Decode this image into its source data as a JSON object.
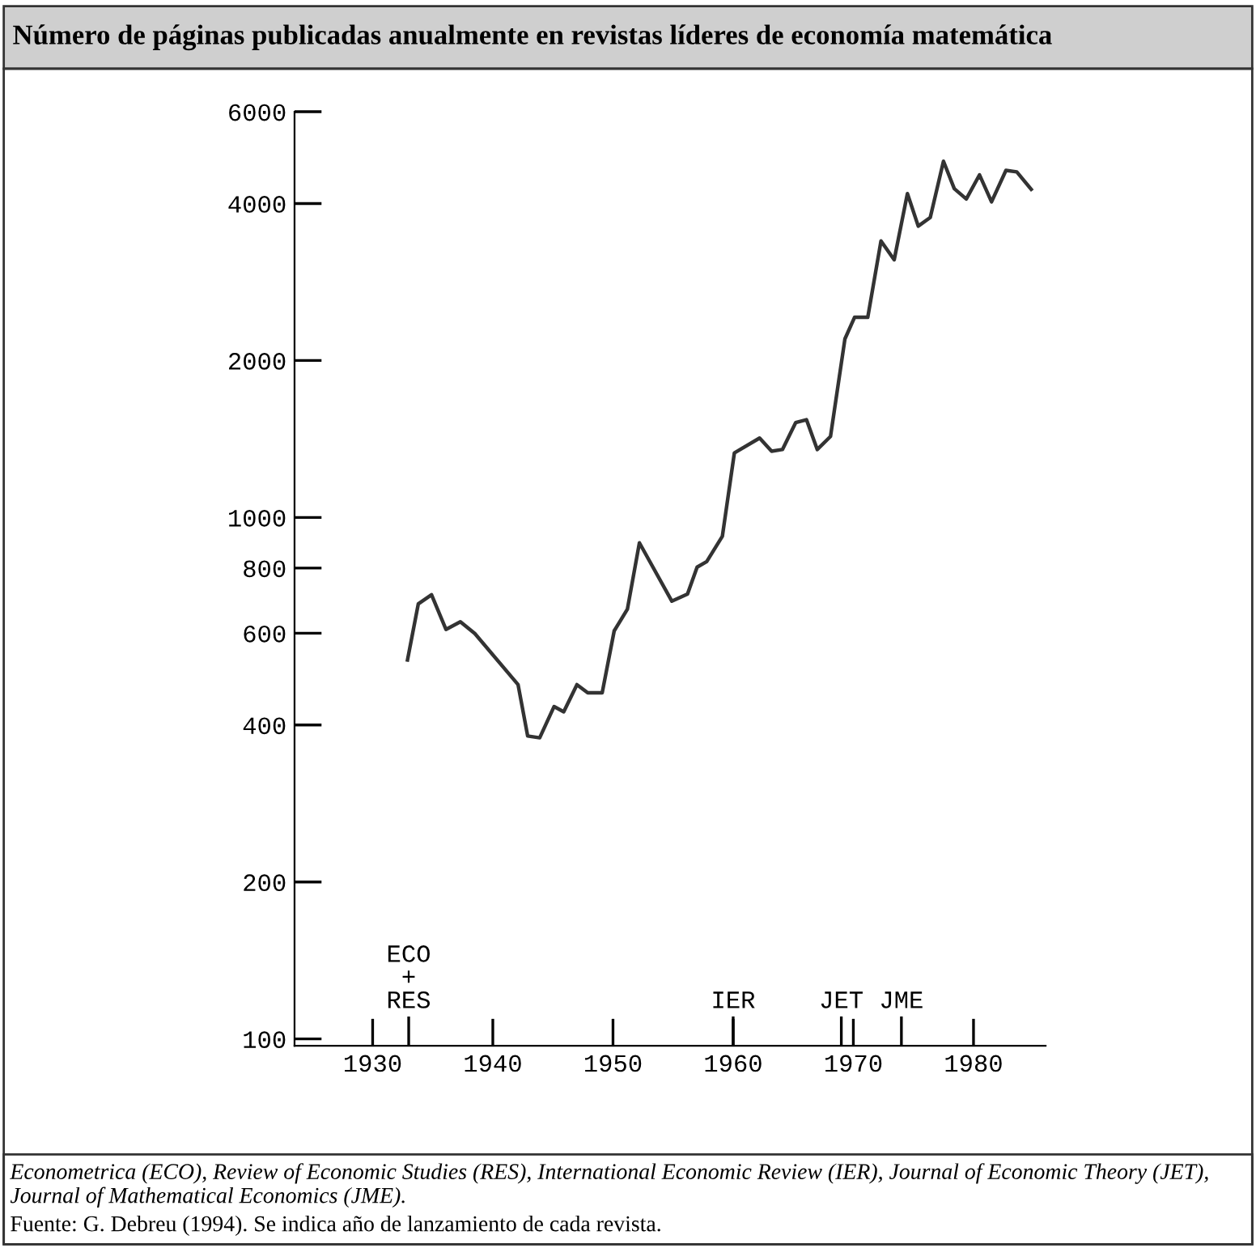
{
  "chart_data": {
    "type": "line",
    "title": "Número de páginas publicadas anualmente en revistas líderes de economía matemática",
    "x": [
      1932.9,
      1933.8,
      1934.9,
      1936.1,
      1937.3,
      1938.5,
      1942.1,
      1942.9,
      1943.9,
      1945.1,
      1945.9,
      1947.0,
      1947.9,
      1949.1,
      1950.1,
      1951.2,
      1952.2,
      1954.9,
      1956.2,
      1957.0,
      1957.8,
      1959.1,
      1960.1,
      1962.2,
      1963.2,
      1964.1,
      1965.2,
      1966.1,
      1967.0,
      1968.1,
      1969.3,
      1970.1,
      1971.2,
      1972.3,
      1973.4,
      1974.5,
      1975.4,
      1976.4,
      1977.5,
      1978.4,
      1979.4,
      1980.5,
      1981.5,
      1982.7,
      1983.6,
      1984.8
    ],
    "series": [
      {
        "color": "#333333",
        "values": [
          533,
          683,
          711,
          610,
          631,
          599,
          478,
          381,
          378,
          434,
          424,
          478,
          461,
          461,
          606,
          667,
          894,
          691,
          713,
          803,
          823,
          920,
          1330,
          1420,
          1340,
          1350,
          1520,
          1540,
          1350,
          1430,
          2200,
          2420,
          2420,
          3390,
          3120,
          4180,
          3620,
          3760,
          4820,
          4270,
          4080,
          4540,
          4030,
          4630,
          4600,
          4260
        ]
      }
    ],
    "log": "y",
    "xlim": [
      1923.5,
      1986
    ],
    "ylim": [
      97,
      6000
    ],
    "xticks": [
      1930,
      1940,
      1950,
      1960,
      1970,
      1980
    ],
    "ref_lines": [
      {
        "axis": "x",
        "value": 1933,
        "label": "ECO\n+\nRES"
      },
      {
        "axis": "x",
        "value": 1960,
        "label": "IER"
      },
      {
        "axis": "x",
        "value": 1969,
        "label": "JET"
      },
      {
        "axis": "x",
        "value": 1974,
        "label": "JME"
      }
    ],
    "yticks": [
      6000,
      4000,
      2000,
      1000,
      800,
      600,
      400,
      200,
      100
    ],
    "grid": false,
    "legend": false,
    "marker": "none",
    "line_style": "solid",
    "annotations": [
      "Econometrica (ECO), Review of Economic Studies (RES), International Economic Review (IER), Journal of Economic Theory (JET), Journal of Mathematical Economics (JME).",
      "Fuente: G. Debreu (1994). Se indica año de lanzamiento de cada revista."
    ]
  }
}
